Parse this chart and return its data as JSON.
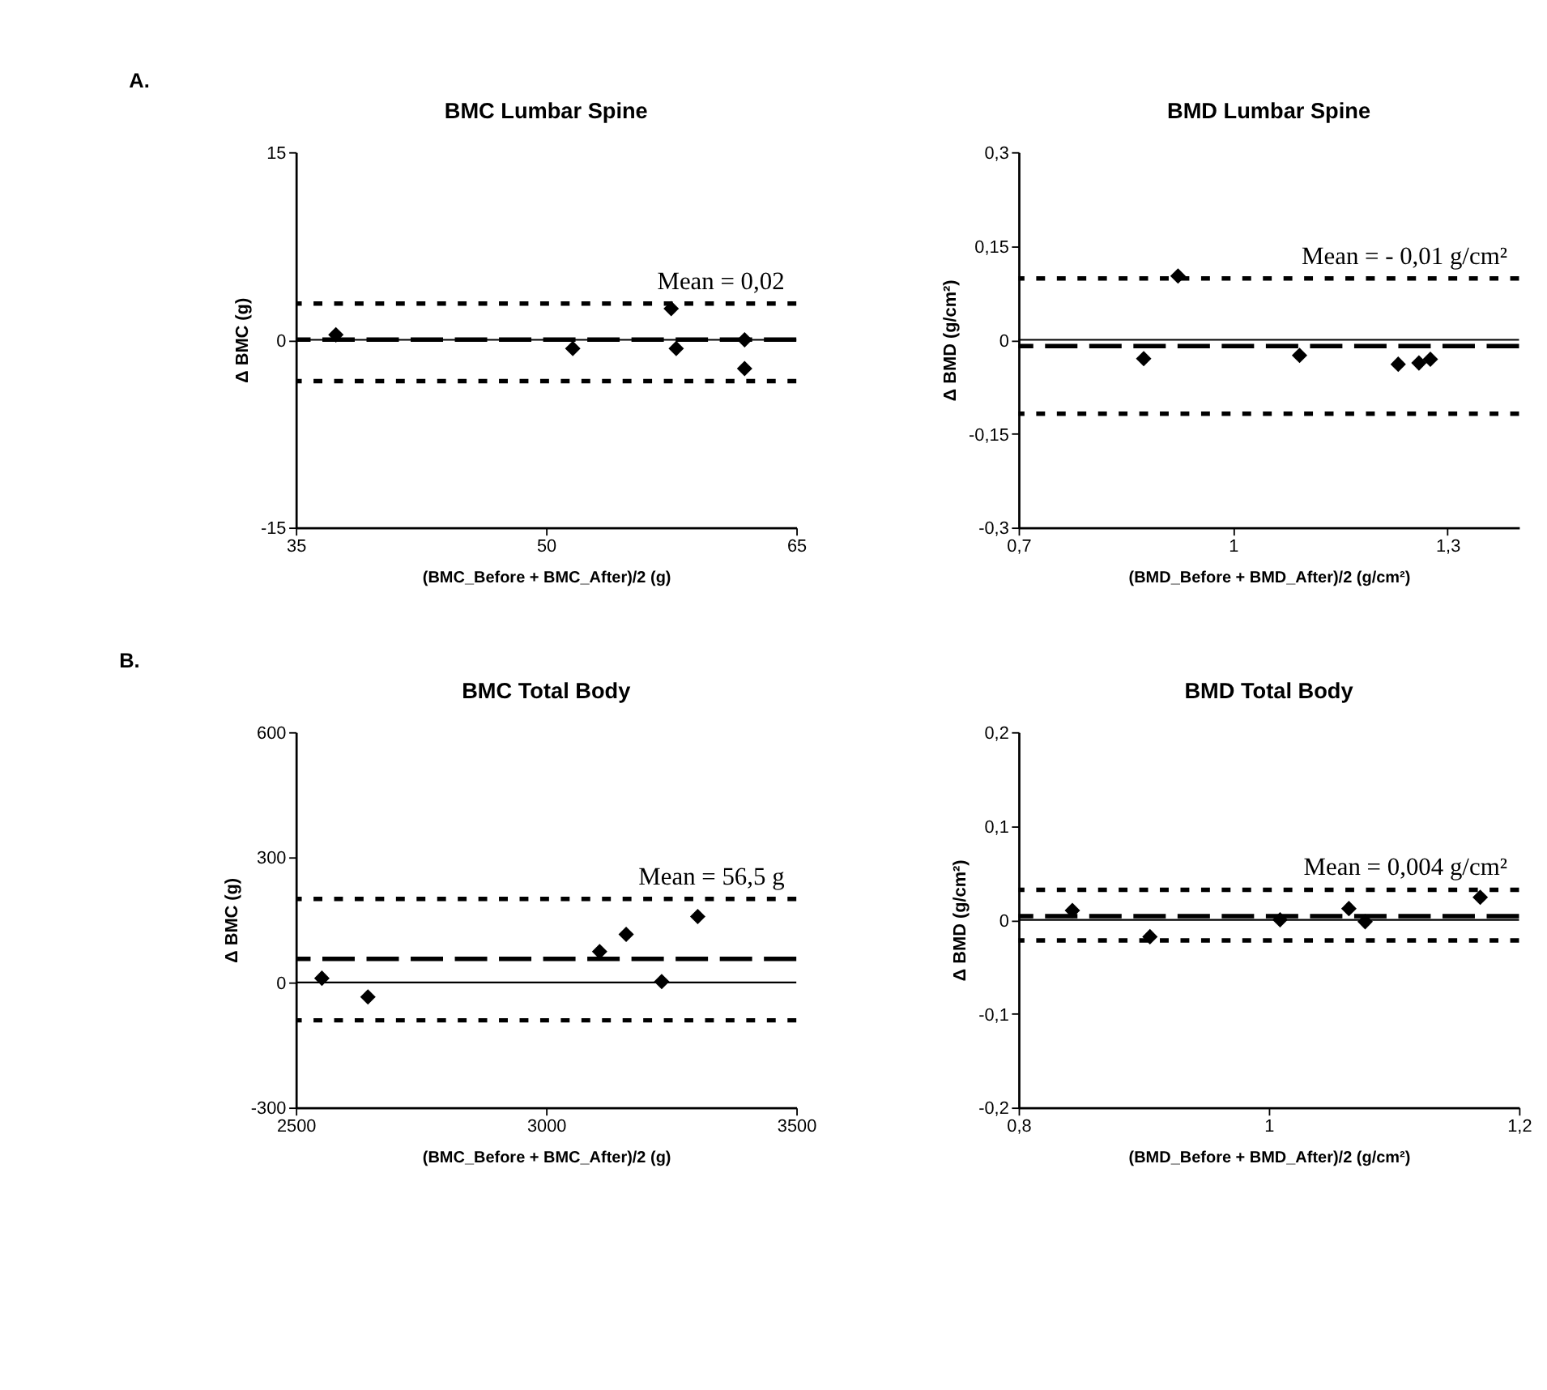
{
  "chart_data": [
    {
      "type": "scatter",
      "title": "BMC Lumbar Spine",
      "xlabel": "(BMC_Before + BMC_After)/2  (g)",
      "ylabel": "Δ BMC  (g)",
      "annotations": [
        "A."
      ],
      "marker": "diamond",
      "grid": false,
      "x": [
        37.4,
        51.6,
        57.5,
        57.8,
        61.9,
        61.9
      ],
      "series": [
        {
          "color": "#000000",
          "values": [
            0.4,
            -0.7,
            2.5,
            -0.7,
            0,
            -2.3
          ]
        }
      ],
      "xlim": [
        35,
        65
      ],
      "xticks": [
        35,
        50,
        65
      ],
      "ylim": [
        -15,
        15
      ],
      "yticks": [
        -15,
        0,
        15
      ],
      "ref_lines": [
        {
          "axis": "y",
          "value": 0,
          "line_style": "solid",
          "color": "#000000"
        },
        {
          "axis": "y",
          "value": 0.02,
          "label": "Mean = 0,02",
          "line_style": "dashed",
          "color": "#000000"
        },
        {
          "axis": "y",
          "value": 2.9,
          "line_style": "dotted",
          "color": "#000000"
        },
        {
          "axis": "y",
          "value": -3.3,
          "line_style": "dotted",
          "color": "#000000"
        }
      ]
    },
    {
      "type": "scatter",
      "title": "BMD Lumbar Spine",
      "xlabel": "(BMD_Before + BMD_After)/2  (g/cm²)",
      "ylabel": "Δ BMD  (g/cm²)",
      "marker": "diamond",
      "grid": false,
      "x": [
        0.875,
        0.923,
        1.093,
        1.231,
        1.26,
        1.276
      ],
      "series": [
        {
          "color": "#000000",
          "values": [
            -0.03,
            0.102,
            -0.025,
            -0.039,
            -0.037,
            -0.031
          ]
        }
      ],
      "xlim": [
        0.7,
        1.4
      ],
      "xticks": [
        {
          "value": 0.7,
          "label": "0,7"
        },
        1,
        {
          "value": 1.3,
          "label": "1,3"
        }
      ],
      "ylim": [
        -0.3,
        0.3
      ],
      "yticks": [
        {
          "value": -0.3,
          "label": "-0,3"
        },
        {
          "value": -0.15,
          "label": "-0,15"
        },
        0,
        {
          "value": 0.15,
          "label": "0,15"
        },
        {
          "value": 0.3,
          "label": "0,3"
        }
      ],
      "ref_lines": [
        {
          "axis": "y",
          "value": 0,
          "line_style": "solid",
          "color": "#000000"
        },
        {
          "axis": "y",
          "value": -0.01,
          "label": "Mean = - 0,01 g/cm²",
          "line_style": "dashed",
          "color": "#000000"
        },
        {
          "axis": "y",
          "value": 0.098,
          "line_style": "dotted",
          "color": "#000000"
        },
        {
          "axis": "y",
          "value": -0.118,
          "line_style": "dotted",
          "color": "#000000"
        }
      ]
    },
    {
      "type": "scatter",
      "title": "BMC Total Body",
      "xlabel": "(BMC_Before + BMC_After)/2  (g)",
      "ylabel": "Δ BMC  (g)",
      "annotations": [
        "B."
      ],
      "marker": "diamond",
      "grid": false,
      "x": [
        2552,
        2644,
        3107,
        3160,
        3231,
        3303
      ],
      "series": [
        {
          "color": "#000000",
          "values": [
            10,
            -35,
            74,
            115,
            2,
            158
          ]
        }
      ],
      "xlim": [
        2500,
        3500
      ],
      "xticks": [
        2500,
        3000,
        3500
      ],
      "ylim": [
        -300,
        600
      ],
      "yticks": [
        -300,
        0,
        300,
        600
      ],
      "ref_lines": [
        {
          "axis": "y",
          "value": 0,
          "line_style": "solid",
          "color": "#000000"
        },
        {
          "axis": "y",
          "value": 56.5,
          "label": "Mean = 56,5 g",
          "line_style": "dashed",
          "color": "#000000"
        },
        {
          "axis": "y",
          "value": 200,
          "line_style": "dotted",
          "color": "#000000"
        },
        {
          "axis": "y",
          "value": -91,
          "line_style": "dotted",
          "color": "#000000"
        }
      ]
    },
    {
      "type": "scatter",
      "title": "BMD Total Body",
      "xlabel": "(BMD_Before + BMD_After)/2  (g/cm²)",
      "ylabel": "Δ BMD  (g/cm²)",
      "marker": "diamond",
      "grid": false,
      "x": [
        0.843,
        0.905,
        1.009,
        1.064,
        1.077,
        1.169
      ],
      "series": [
        {
          "color": "#000000",
          "values": [
            0.01,
            -0.018,
            0.0,
            0.012,
            -0.002,
            0.024
          ]
        }
      ],
      "xlim": [
        0.8,
        1.2
      ],
      "xticks": [
        {
          "value": 0.8,
          "label": "0,8"
        },
        1,
        {
          "value": 1.2,
          "label": "1,2"
        }
      ],
      "ylim": [
        -0.2,
        0.2
      ],
      "yticks": [
        {
          "value": -0.2,
          "label": "-0,2"
        },
        {
          "value": -0.1,
          "label": "-0,1"
        },
        0,
        {
          "value": 0.1,
          "label": "0,1"
        },
        {
          "value": 0.2,
          "label": "0,2"
        }
      ],
      "ref_lines": [
        {
          "axis": "y",
          "value": 0,
          "line_style": "solid",
          "color": "#000000"
        },
        {
          "axis": "y",
          "value": 0.004,
          "label": "Mean = 0,004 g/cm²",
          "line_style": "dashed",
          "color": "#000000"
        },
        {
          "axis": "y",
          "value": 0.032,
          "line_style": "dotted",
          "color": "#000000"
        },
        {
          "axis": "y",
          "value": -0.022,
          "line_style": "dotted",
          "color": "#000000"
        }
      ]
    }
  ]
}
